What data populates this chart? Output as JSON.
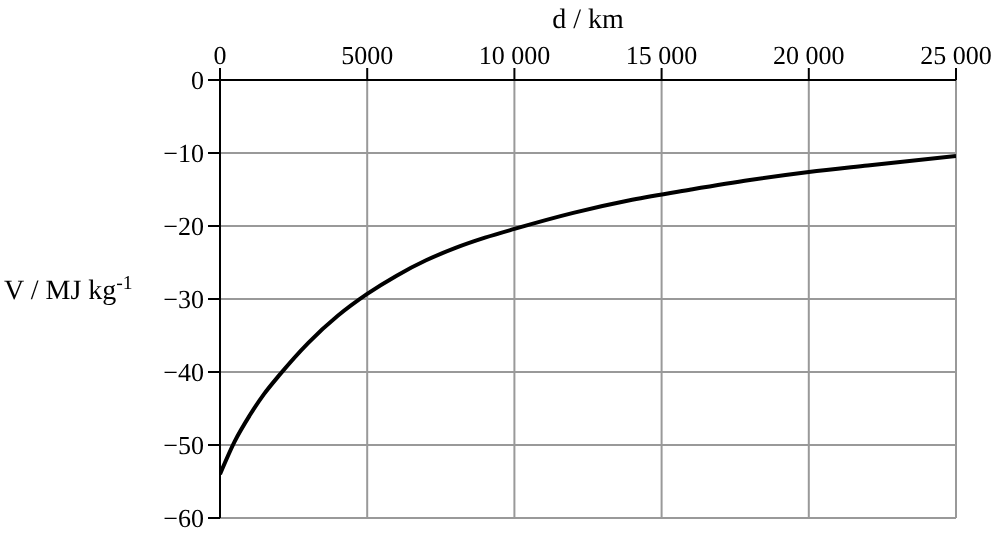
{
  "chart_data": {
    "type": "line",
    "xlabel": "d / km",
    "ylabel": "V / MJ kg$^{-1}$",
    "x": [
      0,
      500,
      1000,
      1500,
      2000,
      3000,
      4000,
      5000,
      6000,
      7000,
      8000,
      9000,
      10000,
      12000,
      14000,
      16000,
      18000,
      20000,
      22000,
      25000
    ],
    "series": [
      {
        "color": "#000000",
        "values": [
          -54,
          -49.5,
          -46,
          -43,
          -40.5,
          -36,
          -32.3,
          -29.3,
          -26.8,
          -24.7,
          -23,
          -21.6,
          -20.4,
          -18.2,
          -16.4,
          -15,
          -13.7,
          -12.6,
          -11.7,
          -10.4
        ]
      }
    ],
    "xlim": [
      0,
      25000
    ],
    "xticks": [
      0,
      5000,
      {
        "value": 10000,
        "label": "10 000"
      },
      {
        "value": 15000,
        "label": "15 000"
      },
      {
        "value": 20000,
        "label": "20 000"
      },
      {
        "value": 25000,
        "label": "25 000"
      }
    ],
    "ylim": [
      -60,
      0
    ],
    "yticks": [
      0,
      -10,
      -20,
      -30,
      -40,
      -50,
      -60
    ],
    "grid": true,
    "marker": "none",
    "line_style": "solid"
  }
}
